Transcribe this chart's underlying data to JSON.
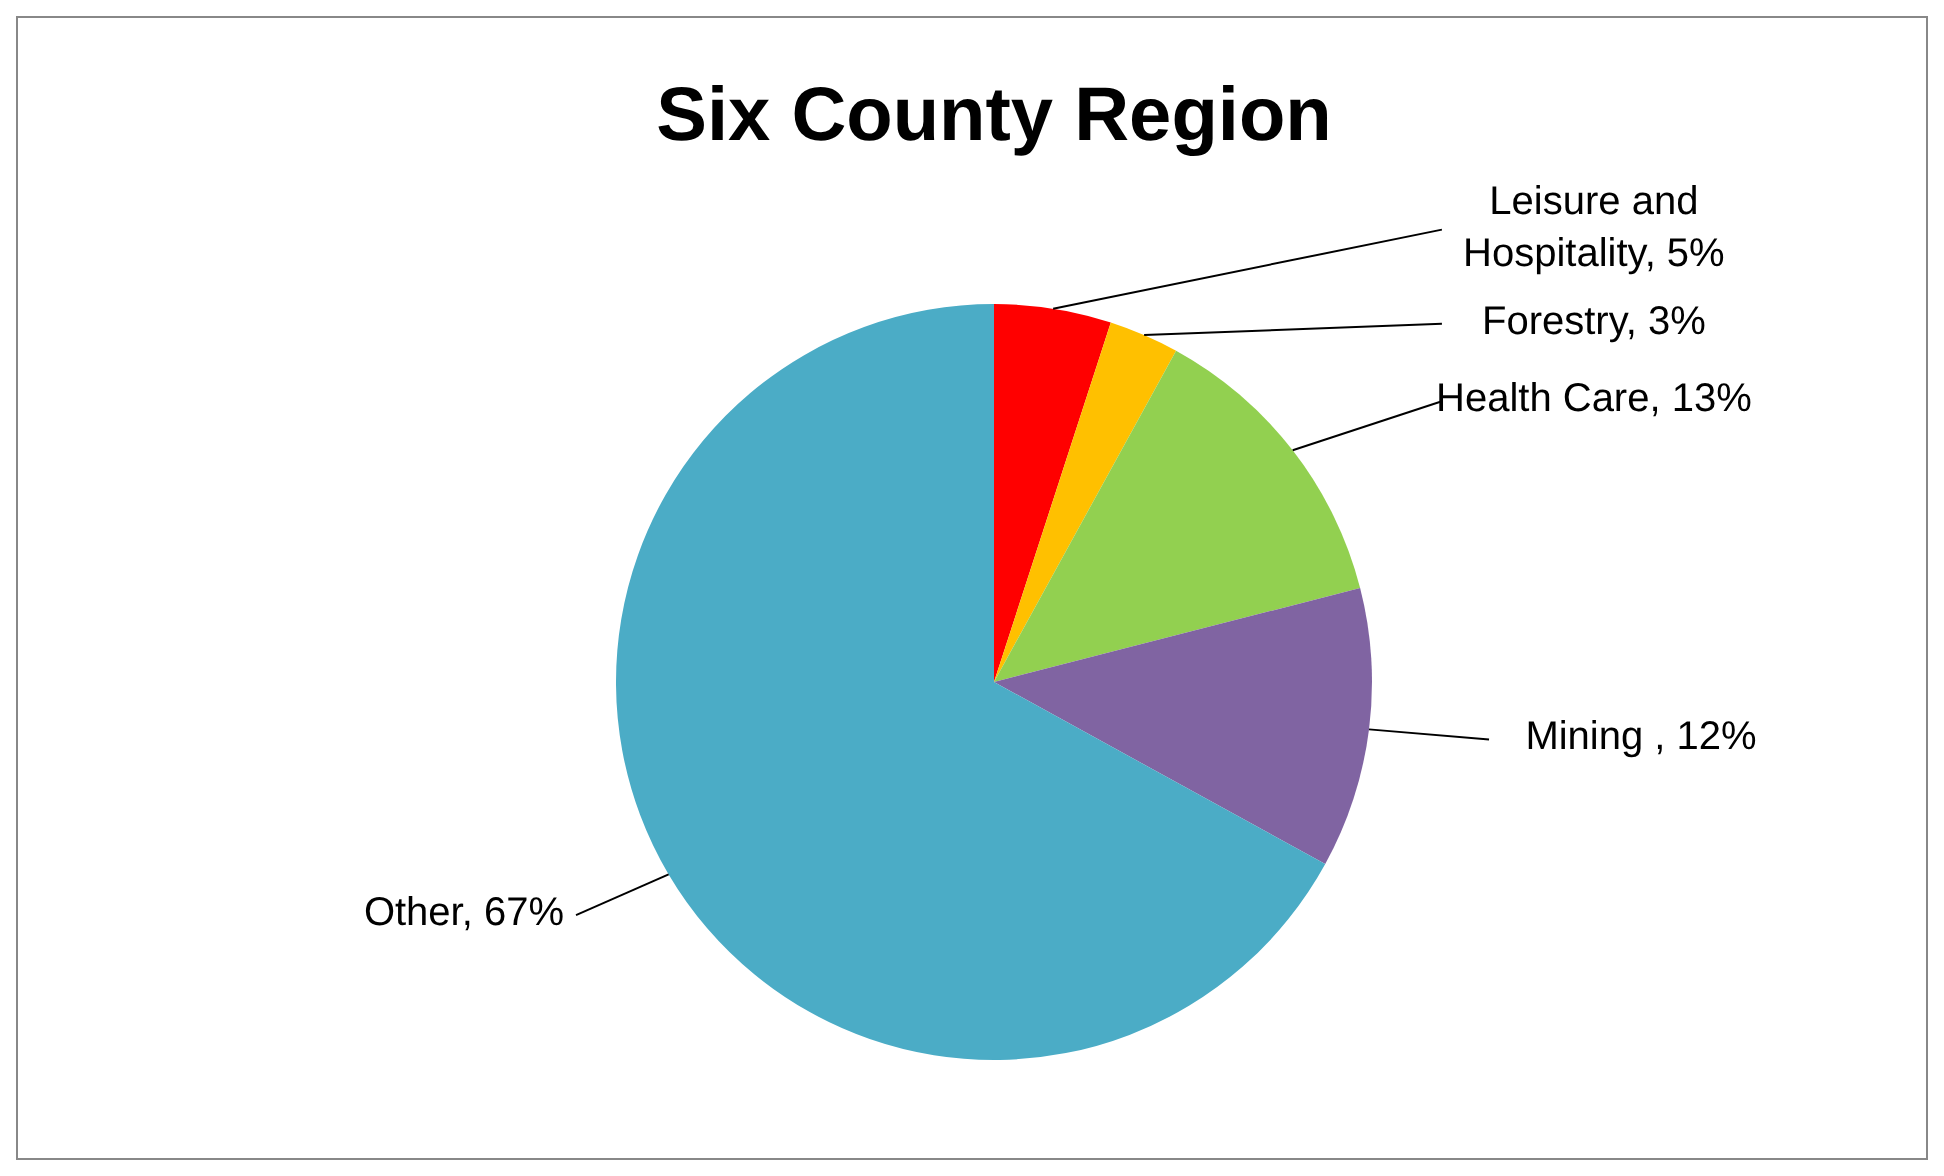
{
  "chart_data": {
    "type": "pie",
    "title": "Six County Region",
    "categories": [
      "Leisure and Hospitality",
      "Forestry",
      "Health Care",
      "Mining ",
      "Other"
    ],
    "values": [
      5,
      3,
      13,
      12,
      67
    ],
    "value_labels": [
      "5%",
      "3%",
      "13%",
      "12%",
      "67%"
    ],
    "colors": [
      "#ff0000",
      "#ffc000",
      "#92d050",
      "#8064a2",
      "#4bacc6"
    ]
  }
}
